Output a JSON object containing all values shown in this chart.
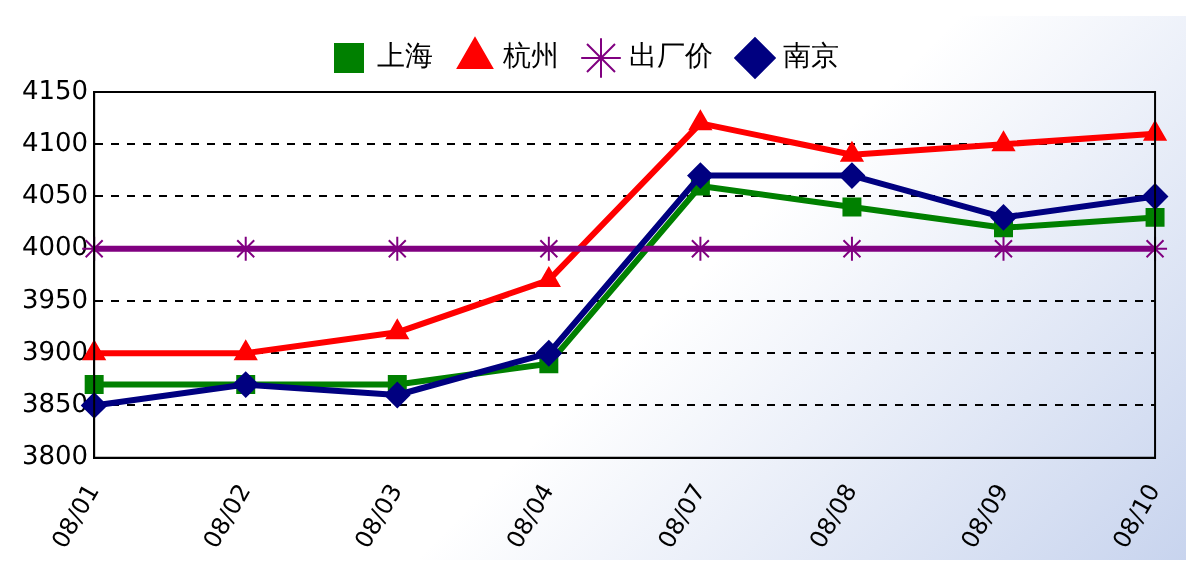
{
  "chart_data": {
    "type": "line",
    "categories": [
      "08/01",
      "08/02",
      "08/03",
      "08/04",
      "08/07",
      "08/08",
      "08/09",
      "08/10"
    ],
    "series": [
      {
        "name": "上海",
        "color": "#008000",
        "marker": "square",
        "values": [
          3870,
          3870,
          3870,
          3890,
          4060,
          4040,
          4020,
          4030
        ]
      },
      {
        "name": "杭州",
        "color": "#ff0000",
        "marker": "triangle",
        "values": [
          3900,
          3900,
          3920,
          3970,
          4120,
          4090,
          4100,
          4110
        ]
      },
      {
        "name": "出厂价",
        "color": "#800080",
        "marker": "cross",
        "values": [
          4000,
          4000,
          4000,
          4000,
          4000,
          4000,
          4000,
          4000
        ]
      },
      {
        "name": "南京",
        "color": "#000080",
        "marker": "diamond",
        "values": [
          3850,
          3870,
          3860,
          3900,
          4070,
          4070,
          4030,
          4050
        ]
      }
    ],
    "ylim": [
      3800,
      4150
    ],
    "yticks": [
      3800,
      3850,
      3900,
      3950,
      4000,
      4050,
      4100,
      4150
    ],
    "grid": "y",
    "legend": "top",
    "line_style": "solid"
  }
}
